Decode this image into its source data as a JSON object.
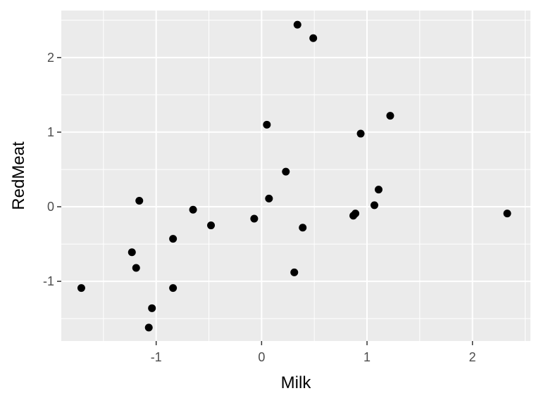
{
  "chart_data": {
    "type": "scatter",
    "xlabel": "Milk",
    "ylabel": "RedMeat",
    "xlim": [
      -1.9,
      2.55
    ],
    "ylim": [
      -1.8,
      2.63
    ],
    "x_ticks": [
      -1,
      0,
      1,
      2
    ],
    "y_ticks": [
      -1,
      0,
      1,
      2
    ],
    "x_tick_labels": [
      "-1",
      "0",
      "1",
      "2"
    ],
    "y_tick_labels": [
      "-1",
      "0",
      "1",
      "2"
    ],
    "grid": true,
    "colors": {
      "panel": "#EBEBEB",
      "grid": "#FFFFFF",
      "point": "#000000",
      "tick_text": "#4D4D4D",
      "tick_mark": "#333333"
    },
    "points": [
      {
        "x": 0.34,
        "y": 2.44
      },
      {
        "x": 0.49,
        "y": 2.26
      },
      {
        "x": 1.22,
        "y": 1.22
      },
      {
        "x": 0.05,
        "y": 1.1
      },
      {
        "x": 0.94,
        "y": 0.98
      },
      {
        "x": 0.23,
        "y": 0.47
      },
      {
        "x": 1.11,
        "y": 0.23
      },
      {
        "x": 0.07,
        "y": 0.11
      },
      {
        "x": -1.16,
        "y": 0.08
      },
      {
        "x": 1.07,
        "y": 0.02
      },
      {
        "x": -0.65,
        "y": -0.04
      },
      {
        "x": 2.33,
        "y": -0.09
      },
      {
        "x": 0.89,
        "y": -0.09
      },
      {
        "x": 0.87,
        "y": -0.12
      },
      {
        "x": -0.07,
        "y": -0.16
      },
      {
        "x": -0.48,
        "y": -0.25
      },
      {
        "x": 0.39,
        "y": -0.28
      },
      {
        "x": -0.84,
        "y": -0.43
      },
      {
        "x": -1.23,
        "y": -0.61
      },
      {
        "x": -1.19,
        "y": -0.82
      },
      {
        "x": 0.31,
        "y": -0.88
      },
      {
        "x": -1.71,
        "y": -1.09
      },
      {
        "x": -0.84,
        "y": -1.09
      },
      {
        "x": -1.04,
        "y": -1.36
      },
      {
        "x": -1.07,
        "y": -1.62
      }
    ]
  }
}
